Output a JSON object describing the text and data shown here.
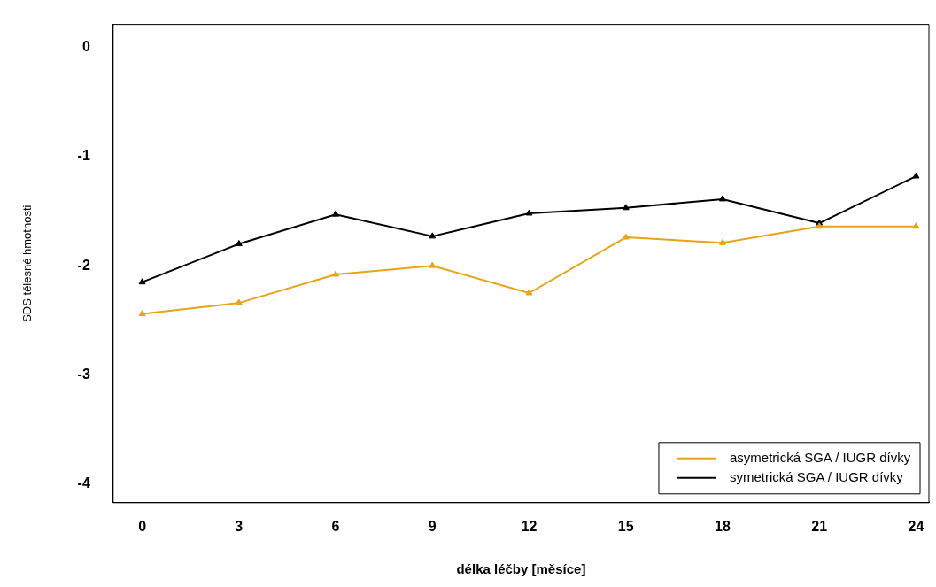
{
  "chart_data": {
    "type": "line",
    "xlabel": "délka léčby [měsíce]",
    "ylabel": "SDS tělesné hmotnosti",
    "x": [
      0,
      3,
      6,
      9,
      12,
      15,
      18,
      21,
      24
    ],
    "series": [
      {
        "name": "asymetrická SGA / IUGR dívky",
        "color": "#e8a317",
        "values": [
          -2.44,
          -2.34,
          -2.08,
          -2.0,
          -2.25,
          -1.74,
          -1.79,
          -1.64,
          -1.64
        ]
      },
      {
        "name": "symetrická SGA / IUGR dívky",
        "color": "#000000",
        "values": [
          -2.15,
          -1.8,
          -1.53,
          -1.73,
          -1.52,
          -1.47,
          -1.39,
          -1.61,
          -1.18
        ]
      }
    ],
    "xlim": [
      -0.9,
      24.4
    ],
    "xticks": [
      0,
      3,
      6,
      9,
      12,
      15,
      18,
      21,
      24
    ],
    "ylim": [
      -4.17,
      0.21
    ],
    "yticks": [
      0,
      -1,
      -2,
      -3,
      -4
    ],
    "marker": "triangle",
    "legend": "bottom right",
    "grid": false
  }
}
